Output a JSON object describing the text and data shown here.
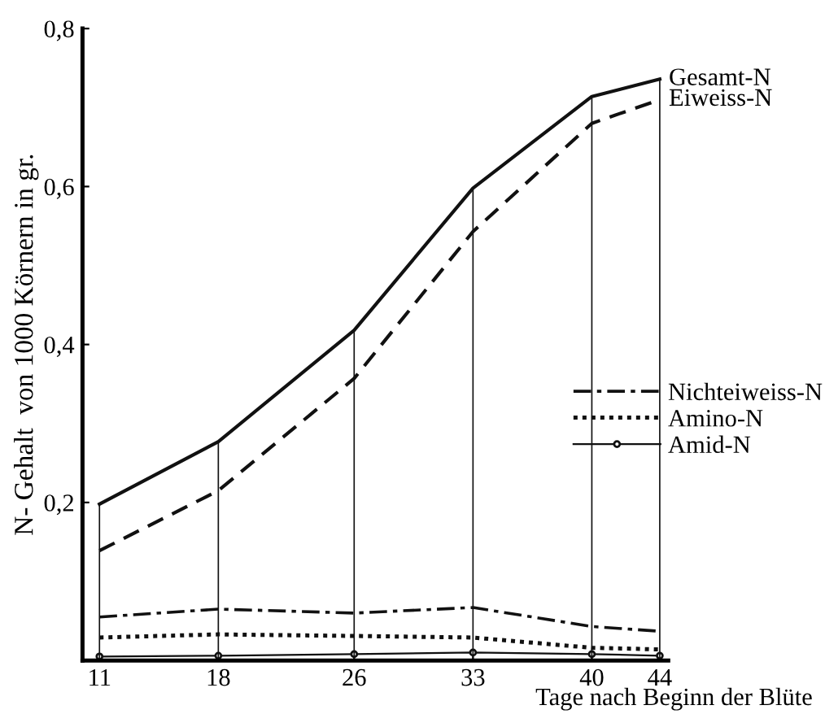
{
  "chart_data": {
    "type": "line",
    "xlabel": "Tage nach Beginn der Blüte",
    "ylabel": "N- Gehalt  von 1000 Körnern in gr.",
    "x": [
      11,
      18,
      26,
      33,
      40,
      44
    ],
    "xlim": [
      10,
      44.5
    ],
    "xticks": [
      11,
      18,
      26,
      33,
      40,
      44
    ],
    "ylim": [
      0,
      0.8
    ],
    "yticks": [
      {
        "value": 0.2,
        "label": "0,2"
      },
      {
        "value": 0.4,
        "label": "0,4"
      },
      {
        "value": 0.6,
        "label": "0,6"
      },
      {
        "value": 0.8,
        "label": "0,8"
      }
    ],
    "ref_lines": [
      {
        "axis": "x",
        "value": 11
      },
      {
        "axis": "x",
        "value": 18
      },
      {
        "axis": "x",
        "value": 26
      },
      {
        "axis": "x",
        "value": 33
      },
      {
        "axis": "x",
        "value": 40
      },
      {
        "axis": "x",
        "value": 44
      }
    ],
    "legend": "right",
    "series": [
      {
        "color": "#111111",
        "line_style": "solid",
        "values": [
          0.198,
          0.277,
          0.418,
          0.598,
          0.714,
          0.736
        ]
      },
      {
        "color": "#111111",
        "line_style": "dashed",
        "values": [
          0.139,
          0.215,
          0.357,
          0.543,
          0.68,
          0.71
        ]
      },
      {
        "name": "Nichteiweiss-N",
        "color": "#111111",
        "line_style": "dashdot",
        "values": [
          0.055,
          0.065,
          0.06,
          0.067,
          0.043,
          0.037
        ]
      },
      {
        "name": "Amino-N",
        "color": "#111111",
        "line_style": "dotted",
        "values": [
          0.029,
          0.033,
          0.031,
          0.029,
          0.016,
          0.014
        ]
      },
      {
        "name": "Amid-N",
        "color": "#111111",
        "line_style": "solid",
        "marker": "circle",
        "values": [
          0.005,
          0.006,
          0.008,
          0.01,
          0.008,
          0.006
        ]
      }
    ],
    "annotations": [
      {
        "text": "Gesamt-N",
        "x": 44,
        "y": 0.736
      },
      {
        "text": "Eiweiss-N",
        "x": 44,
        "y": 0.71
      }
    ]
  }
}
